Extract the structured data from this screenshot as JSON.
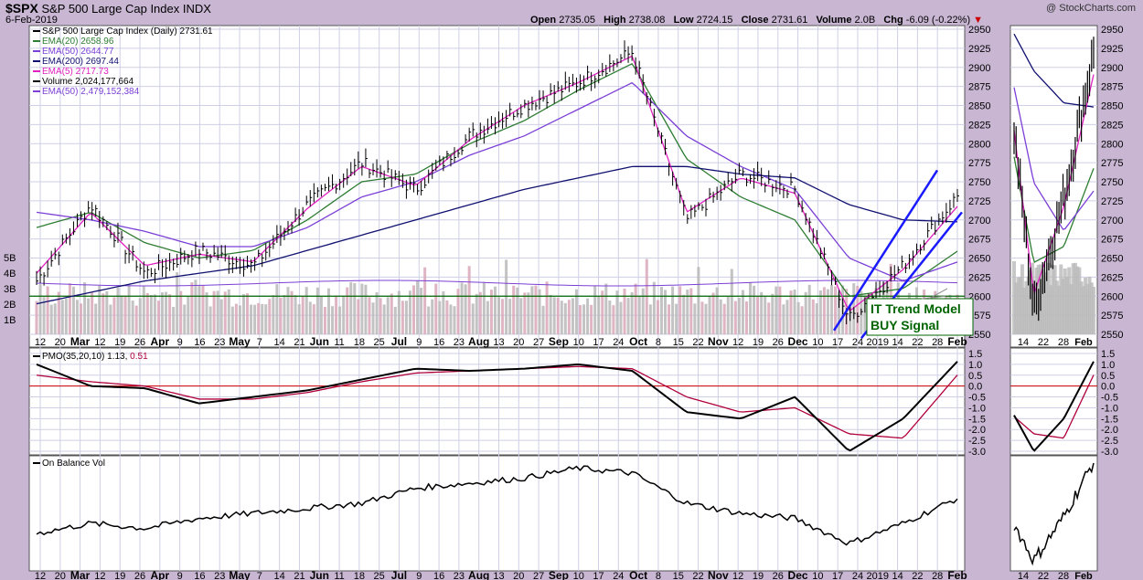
{
  "header": {
    "symbol": "$SPX",
    "name": "S&P 500 Large Cap Index",
    "exchange": "INDX",
    "date": "6-Feb-2019",
    "copyright": "@ StockCharts.com",
    "open_label": "Open",
    "open": "2735.05",
    "high_label": "High",
    "high": "2738.08",
    "low_label": "Low",
    "low": "2724.15",
    "close_label": "Close",
    "close": "2731.61",
    "volume_label": "Volume",
    "volume": "2.0B",
    "chg_label": "Chg",
    "chg": "-6.09 (-0.22%)"
  },
  "colors": {
    "background": "#c8b6d3",
    "panel": "#ffffff",
    "grid": "#cfcfe6",
    "ema20": "#2e7d32",
    "ema50": "#7b3fd6",
    "ema200": "#101070",
    "ema5": "#e020c0",
    "volume": "#b9b9b9",
    "volume_up": "#d9a7b8",
    "trendline": "#1a1aff",
    "support": "#006400",
    "pmo": "#000000",
    "pmo_signal": "#b0003a",
    "annotation": "#006400"
  },
  "legend": [
    {
      "text": "S&P 500 Large Cap Index (Daily) 2731.61",
      "color": "#000000"
    },
    {
      "text": "EMA(20) 2658.96",
      "color": "#2e7d32"
    },
    {
      "text": "EMA(50) 2644.77",
      "color": "#7b3fd6"
    },
    {
      "text": "EMA(200) 2697.44",
      "color": "#101070"
    },
    {
      "text": "EMA(5) 2717.73",
      "color": "#e020c0"
    },
    {
      "text": "Volume 2,024,177,664",
      "color": "#000000"
    },
    {
      "text": "EMA(50) 2,479,152,384",
      "color": "#7b3fd6"
    }
  ],
  "annotation": {
    "line1": "IT Trend Model",
    "line2": "BUY Signal"
  },
  "pmo_legend": {
    "label": "PMO(35,20,10)",
    "value1": "1.13",
    "value2": "0.51"
  },
  "obv_legend": {
    "label": "On Balance Vol"
  },
  "chart_data": [
    {
      "type": "line",
      "title": "S&P 500 Large Cap Index (Daily) 2731.61",
      "ylim": [
        2550,
        2950
      ],
      "y_ticks": [
        2550,
        2575,
        2600,
        2625,
        2650,
        2675,
        2700,
        2725,
        2750,
        2775,
        2800,
        2825,
        2850,
        2875,
        2900,
        2925,
        2950
      ],
      "volume_ticks": [
        "1B",
        "2B",
        "3B",
        "4B",
        "5B"
      ],
      "x_tick_labels": [
        "12",
        "20",
        "Mar",
        "12",
        "19",
        "26",
        "Apr",
        "9",
        "16",
        "23",
        "May",
        "7",
        "14",
        "21",
        "Jun",
        "11",
        "18",
        "25",
        "Jul",
        "9",
        "16",
        "23",
        "Aug",
        "13",
        "20",
        "27",
        "Sep",
        "10",
        "17",
        "24",
        "Oct",
        "8",
        "15",
        "22",
        "Nov",
        "12",
        "19",
        "26",
        "Dec",
        "10",
        "17",
        "24",
        "2019",
        "14",
        "22",
        "28",
        "Feb"
      ],
      "x": [
        "2018-02-09",
        "2018-03-01",
        "2018-03-23",
        "2018-04-13",
        "2018-05-04",
        "2018-05-25",
        "2018-06-15",
        "2018-07-09",
        "2018-07-30",
        "2018-08-20",
        "2018-09-10",
        "2018-10-01",
        "2018-10-22",
        "2018-11-12",
        "2018-12-03",
        "2018-12-24",
        "2019-01-14",
        "2019-02-06"
      ],
      "series": [
        {
          "name": "S&P 500 Large Cap Index (Daily) 2731.61",
          "values": [
            2620,
            2720,
            2630,
            2660,
            2640,
            2720,
            2775,
            2740,
            2810,
            2850,
            2880,
            2920,
            2700,
            2760,
            2740,
            2570,
            2640,
            2731.61
          ]
        },
        {
          "name": "EMA(20) 2658.96",
          "values": [
            2690,
            2710,
            2670,
            2650,
            2660,
            2700,
            2750,
            2760,
            2800,
            2830,
            2870,
            2905,
            2780,
            2730,
            2700,
            2600,
            2610,
            2658.96
          ]
        },
        {
          "name": "EMA(50) 2644.77",
          "values": [
            2710,
            2700,
            2685,
            2665,
            2665,
            2690,
            2730,
            2750,
            2785,
            2810,
            2845,
            2880,
            2810,
            2770,
            2740,
            2650,
            2620,
            2644.77
          ]
        },
        {
          "name": "EMA(200) 2697.44",
          "values": [
            2590,
            2605,
            2620,
            2630,
            2640,
            2660,
            2680,
            2700,
            2720,
            2740,
            2755,
            2770,
            2770,
            2760,
            2755,
            2720,
            2700,
            2697.44
          ]
        },
        {
          "name": "EMA(5) 2717.73",
          "values": [
            2630,
            2710,
            2640,
            2655,
            2645,
            2715,
            2770,
            2745,
            2805,
            2850,
            2880,
            2915,
            2710,
            2755,
            2735,
            2580,
            2635,
            2717.73
          ]
        }
      ]
    },
    {
      "type": "line",
      "title": "PMO(35,20,10) 1.13 0.51",
      "ylim": [
        -3.0,
        1.5
      ],
      "y_ticks": [
        "1.5",
        "1.0",
        "0.5",
        "0.0",
        "-0.5",
        "-1.0",
        "-1.5",
        "-2.0",
        "-2.5",
        "-3.0"
      ],
      "series": [
        {
          "name": "PMO(35,20,10)",
          "values": [
            1.0,
            0.0,
            -0.1,
            -0.8,
            -0.5,
            -0.2,
            0.3,
            0.8,
            0.7,
            0.8,
            1.0,
            0.7,
            -1.2,
            -1.5,
            -0.5,
            -3.0,
            -1.5,
            1.13
          ]
        },
        {
          "name": "0.51",
          "values": [
            0.5,
            0.2,
            0.0,
            -0.6,
            -0.6,
            -0.3,
            0.2,
            0.6,
            0.7,
            0.8,
            0.9,
            0.8,
            -0.5,
            -1.2,
            -1.0,
            -2.2,
            -2.4,
            0.51
          ]
        }
      ]
    },
    {
      "type": "line",
      "title": "On Balance Vol",
      "series": [
        {
          "name": "On Balance Vol",
          "values": [
            30,
            40,
            35,
            45,
            50,
            55,
            60,
            75,
            80,
            85,
            95,
            90,
            60,
            50,
            45,
            20,
            40,
            65
          ]
        }
      ]
    }
  ]
}
